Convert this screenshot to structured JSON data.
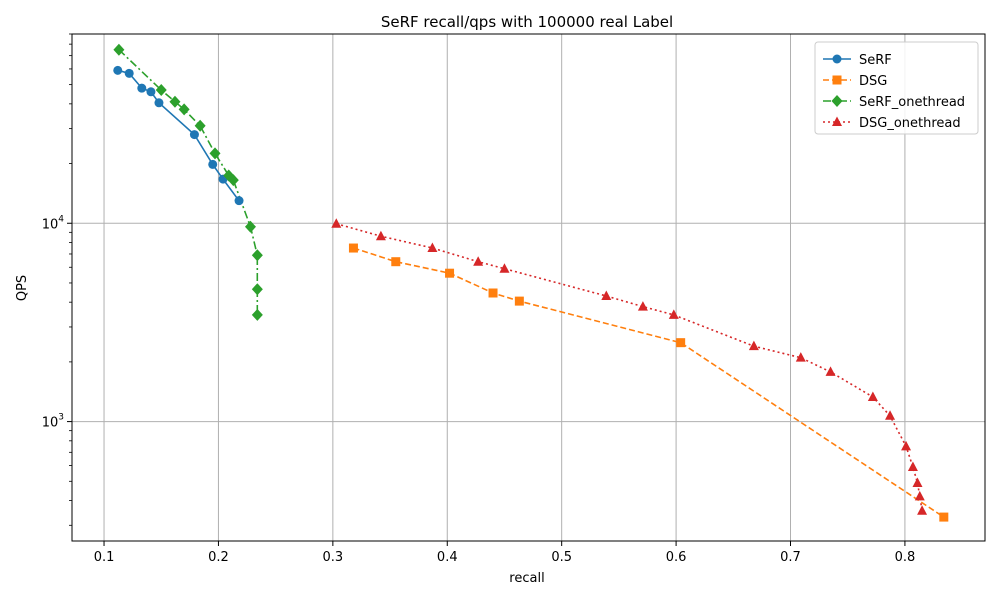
{
  "chart_data": {
    "type": "line",
    "title": "SeRF recall/qps with 100000 real Label",
    "xlabel": "recall",
    "ylabel": "QPS",
    "xlim": [
      0.072,
      0.87
    ],
    "ylim": [
      250,
      90000
    ],
    "yscale": "log",
    "grid": true,
    "legend_position": "top-right",
    "x_ticks": [
      0.1,
      0.2,
      0.3,
      0.4,
      0.5,
      0.6,
      0.7,
      0.8
    ],
    "x_tick_labels": [
      "0.1",
      "0.2",
      "0.3",
      "0.4",
      "0.5",
      "0.6",
      "0.7",
      "0.8"
    ],
    "y_major_ticks": [
      {
        "value": 1000,
        "base": "10",
        "exp": "3"
      },
      {
        "value": 10000,
        "base": "10",
        "exp": "4"
      }
    ],
    "series": [
      {
        "name": "SeRF",
        "color": "#1f77b4",
        "marker": "circle",
        "linestyle": "solid",
        "x": [
          0.112,
          0.122,
          0.133,
          0.141,
          0.148,
          0.179,
          0.195,
          0.204,
          0.218
        ],
        "y": [
          59000,
          57000,
          48000,
          46000,
          40500,
          28000,
          19800,
          16700,
          13000
        ]
      },
      {
        "name": "DSG",
        "color": "#ff7f0e",
        "marker": "square",
        "linestyle": "dashed",
        "x": [
          0.318,
          0.355,
          0.402,
          0.44,
          0.463,
          0.604,
          0.834
        ],
        "y": [
          7500,
          6400,
          5600,
          4450,
          4050,
          2500,
          330
        ]
      },
      {
        "name": "SeRF_onethread",
        "color": "#2ca02c",
        "marker": "diamond",
        "linestyle": "dashdot",
        "x": [
          0.113,
          0.15,
          0.162,
          0.17,
          0.184,
          0.197,
          0.209,
          0.213,
          0.228,
          0.234,
          0.234,
          0.234
        ],
        "y": [
          75000,
          47000,
          41000,
          37500,
          31000,
          22500,
          17400,
          16500,
          9600,
          6900,
          4650,
          3450
        ]
      },
      {
        "name": "DSG_onethread",
        "color": "#d62728",
        "marker": "triangle",
        "linestyle": "dotted",
        "x": [
          0.303,
          0.342,
          0.387,
          0.427,
          0.45,
          0.539,
          0.571,
          0.598,
          0.668,
          0.709,
          0.735,
          0.772,
          0.787,
          0.801,
          0.807,
          0.811,
          0.813,
          0.815
        ],
        "y": [
          9950,
          8600,
          7500,
          6400,
          5900,
          4300,
          3800,
          3450,
          2400,
          2100,
          1780,
          1330,
          1070,
          750,
          590,
          490,
          420,
          355
        ]
      }
    ]
  }
}
